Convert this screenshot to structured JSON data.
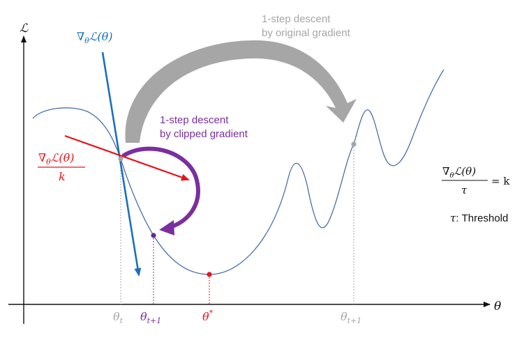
{
  "axes": {
    "y_label": "ℒ",
    "x_label": "θ"
  },
  "gradient_label": {
    "nabla": "∇",
    "sub": "θ",
    "rest": "ℒ(θ)"
  },
  "clipped_fraction": {
    "numerator_nabla": "∇",
    "numerator_sub": "θ",
    "numerator_rest": "ℒ(θ)",
    "denominator": "k"
  },
  "clipped_descent": {
    "line1": "1-step descent",
    "line2": "by clipped gradient"
  },
  "original_descent": {
    "line1": "1-step descent",
    "line2": "by original gradient"
  },
  "equation": {
    "numerator_nabla": "∇",
    "numerator_sub": "θ",
    "numerator_rest": "ℒ(θ)",
    "denominator": "τ",
    "rhs": "= k"
  },
  "threshold": {
    "symbol": "τ",
    "text": ": Threshold"
  },
  "ticks": {
    "theta_t": {
      "base": "θ",
      "sub": "t"
    },
    "theta_t1_clipped": {
      "base": "θ",
      "sub": "t+1"
    },
    "theta_star": {
      "base": "θ",
      "sup": "*"
    },
    "theta_t1_original": {
      "base": "θ",
      "sub": "t+1"
    }
  },
  "colors": {
    "curve": "#4a6fa5",
    "gradient": "#1a6fbf",
    "clipped": "#e8141b",
    "purple": "#7a2fa0",
    "gray": "#a6a6a6",
    "optimum": "#e8141b",
    "text": "#111111"
  }
}
